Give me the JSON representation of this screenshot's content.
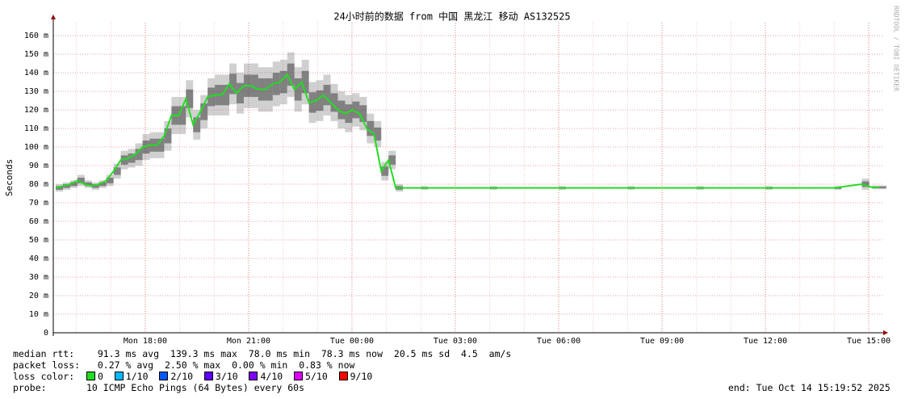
{
  "chart_data": {
    "type": "line",
    "title": "24小时前的数据 from 中国 黑龙江 移动 AS132525",
    "y_label": "Seconds",
    "side_text": "RRDTOOL / TOBI OETIKER",
    "xlim": [
      15.33,
      39.42
    ],
    "xticks": [
      {
        "value": 18,
        "label": "Mon 18:00"
      },
      {
        "value": 21,
        "label": "Mon 21:00"
      },
      {
        "value": 24,
        "label": "Tue 00:00"
      },
      {
        "value": 27,
        "label": "Tue 03:00"
      },
      {
        "value": 30,
        "label": "Tue 06:00"
      },
      {
        "value": 33,
        "label": "Tue 09:00"
      },
      {
        "value": 36,
        "label": "Tue 12:00"
      },
      {
        "value": 39,
        "label": "Tue 15:00"
      }
    ],
    "ylim": [
      0,
      167
    ],
    "yticks": [
      0,
      {
        "value": 10,
        "label": "10 m"
      },
      {
        "value": 20,
        "label": "20 m"
      },
      {
        "value": 30,
        "label": "30 m"
      },
      {
        "value": 40,
        "label": "40 m"
      },
      {
        "value": 50,
        "label": "50 m"
      },
      {
        "value": 60,
        "label": "60 m"
      },
      {
        "value": 70,
        "label": "70 m"
      },
      {
        "value": 80,
        "label": "80 m"
      },
      {
        "value": 90,
        "label": "90 m"
      },
      {
        "value": 100,
        "label": "100 m"
      },
      {
        "value": 110,
        "label": "110 m"
      },
      {
        "value": 120,
        "label": "120 m"
      },
      {
        "value": 130,
        "label": "130 m"
      },
      {
        "value": 140,
        "label": "140 m"
      },
      {
        "value": 150,
        "label": "150 m"
      },
      {
        "value": 160,
        "label": "160 m"
      }
    ],
    "grid": true,
    "x": [
      15.4,
      15.61,
      15.82,
      16.03,
      16.24,
      16.45,
      16.66,
      16.87,
      17.08,
      17.29,
      17.5,
      17.71,
      17.92,
      18.13,
      18.34,
      18.55,
      18.76,
      18.97,
      19.18,
      19.39,
      19.6,
      19.81,
      20.02,
      20.23,
      20.44,
      20.65,
      20.86,
      21.07,
      21.28,
      21.49,
      21.7,
      21.91,
      22.12,
      22.33,
      22.54,
      22.75,
      22.96,
      23.17,
      23.38,
      23.59,
      23.8,
      24.01,
      24.22,
      24.43,
      24.64,
      24.85,
      25.06,
      25.27,
      26,
      28,
      30,
      32,
      34,
      36,
      38,
      38.8,
      39.1,
      39.3
    ],
    "series": [
      {
        "color": "#22dd22",
        "smoke_color": "#777777",
        "values": [
          78,
          79,
          80,
          82,
          80,
          79,
          80,
          82,
          87,
          93,
          94,
          96,
          100,
          101,
          101,
          106,
          117,
          117,
          126,
          112,
          119,
          127,
          128,
          128,
          134,
          129,
          133,
          133,
          131,
          131,
          134,
          135,
          139,
          131,
          135,
          124,
          125,
          128,
          124,
          120,
          118,
          120,
          118,
          110,
          107,
          87,
          93,
          78,
          78,
          78,
          78,
          78,
          78,
          78,
          78,
          80,
          78.3,
          78.3
        ],
        "spread": [
          2,
          2,
          2,
          3,
          2,
          2,
          2,
          3,
          4,
          5,
          5,
          6,
          7,
          7,
          7,
          8,
          10,
          10,
          10,
          8,
          9,
          10,
          11,
          11,
          11,
          11,
          12,
          12,
          12,
          12,
          12,
          12,
          12,
          12,
          12,
          11,
          11,
          11,
          10,
          10,
          10,
          9,
          9,
          8,
          7,
          5,
          5,
          2,
          1,
          1,
          1,
          1,
          1,
          1,
          1,
          3,
          1,
          1
        ]
      }
    ]
  },
  "footer": {
    "rtt": [
      "median rtt:",
      "91.3 ms avg",
      "139.3 ms max",
      "78.0 ms min",
      "78.3 ms now",
      "20.5 ms sd",
      "4.5",
      "am/s"
    ],
    "loss": [
      "packet loss:",
      "0.27 % avg",
      "2.50 % max",
      "0.00 % min",
      "0.83 % now"
    ],
    "loss_color_label": "loss color:",
    "loss_colors": [
      {
        "label": "0",
        "color": "#22dd22"
      },
      {
        "label": "1/10",
        "color": "#00b8ff"
      },
      {
        "label": "2/10",
        "color": "#0059ff"
      },
      {
        "label": "3/10",
        "color": "#5e00ff"
      },
      {
        "label": "4/10",
        "color": "#7e00ff"
      },
      {
        "label": "5/10",
        "color": "#dd00ff"
      },
      {
        "label": "9/10",
        "color": "#ff0000"
      }
    ],
    "probe_label": "probe:",
    "probe": "10 ICMP Echo Pings (64 Bytes) every 60s",
    "end": "end: Tue Oct 14 15:19:52 2025"
  }
}
